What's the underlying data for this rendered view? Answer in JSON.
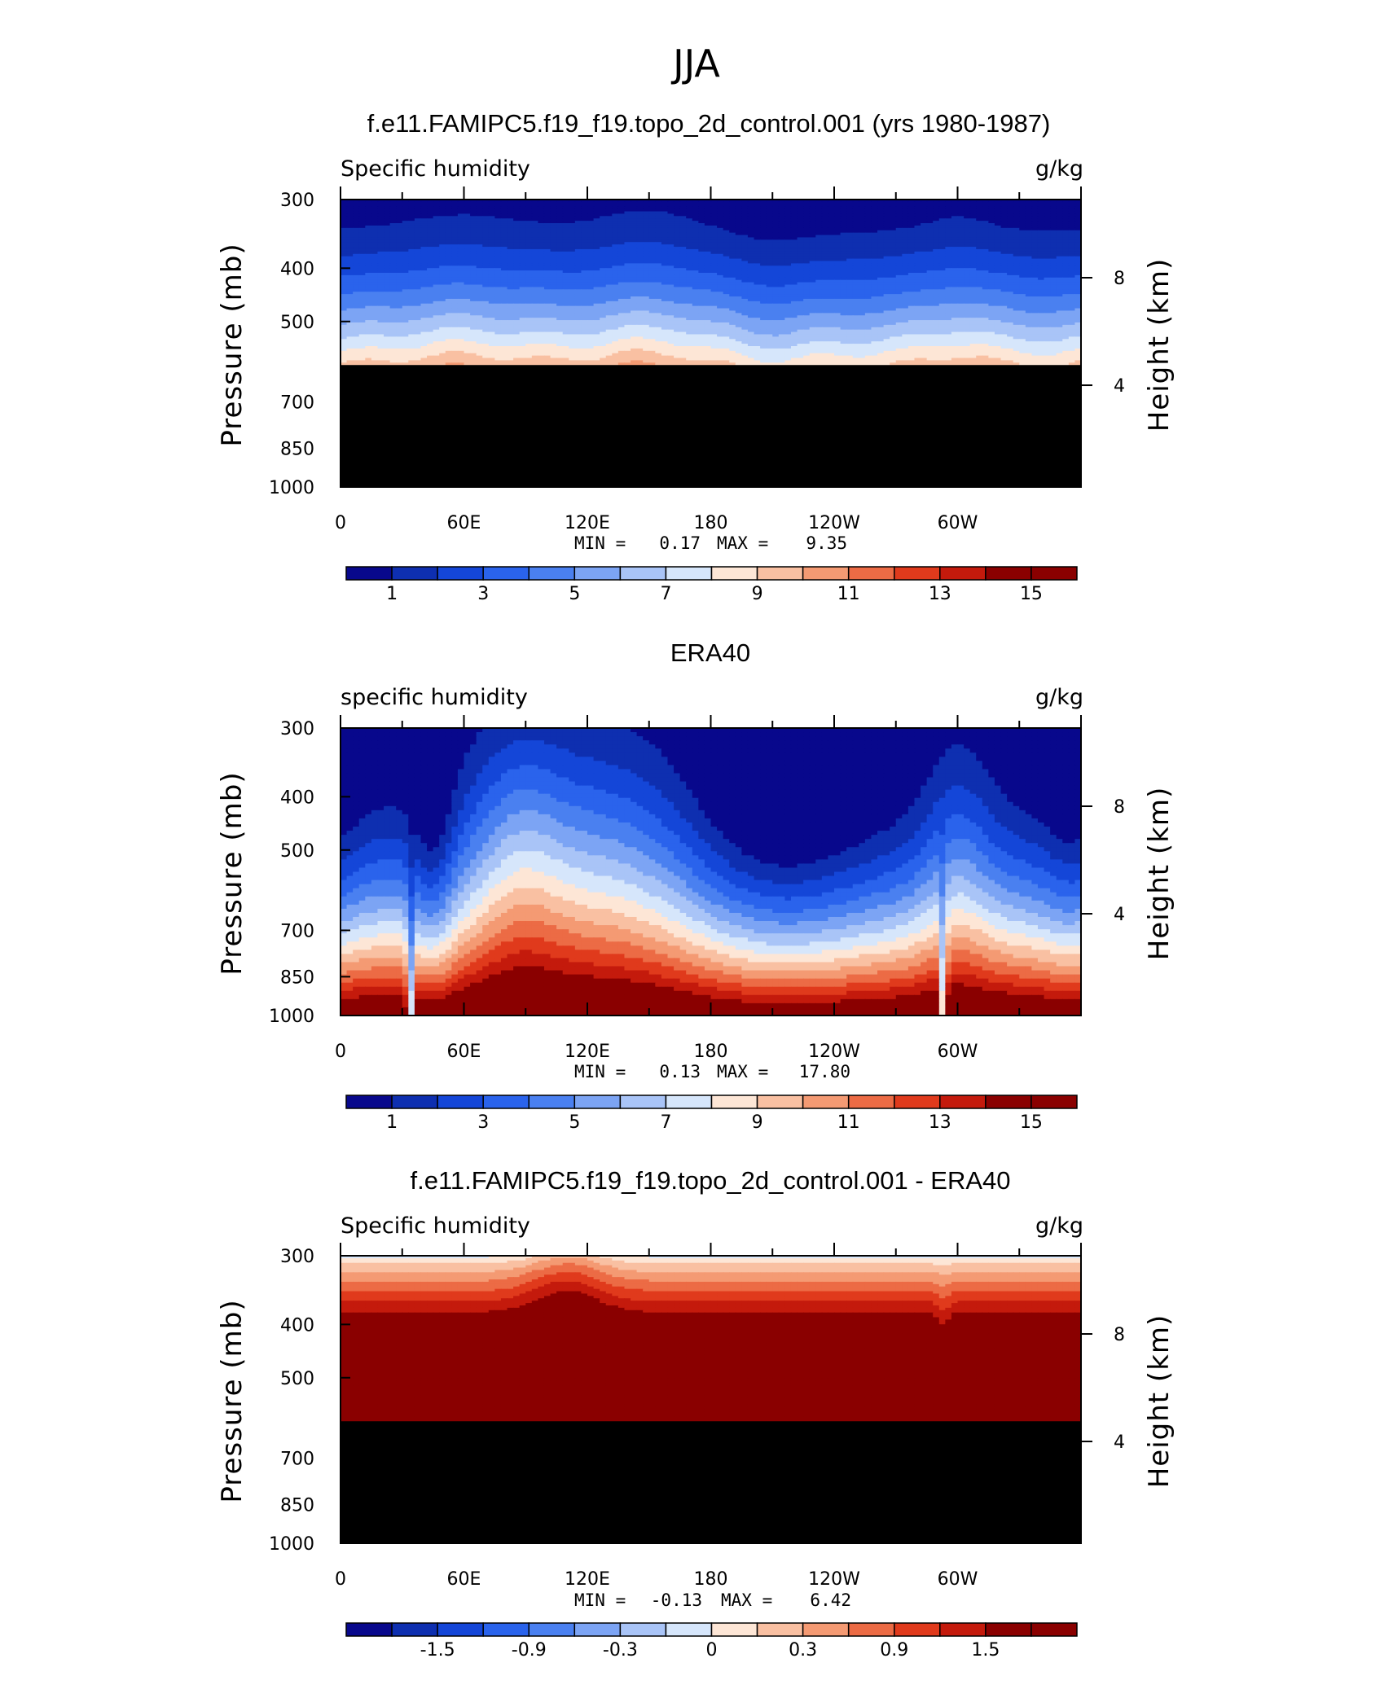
{
  "figure": {
    "title": "JJA",
    "palette": [
      "#08088c",
      "#0e2fb0",
      "#1446d8",
      "#2a63ec",
      "#4a80f0",
      "#7ca4f4",
      "#a9c4f7",
      "#d6e6fb",
      "#fde6d6",
      "#f9c0a2",
      "#f49a73",
      "#ec6b45",
      "#e03a1c",
      "#c41a0c",
      "#8a0000"
    ],
    "terrain_color": "#000000"
  },
  "chart_data": [
    {
      "type": "contour",
      "title": "f.e11.FAMIPC5.f19_f19.topo_2d_control.001 (yrs 1980-1987)",
      "left_label": "Specific humidity",
      "right_label": "g/kg",
      "ylabel": "Pressure (mb)",
      "y2label": "Height (km)",
      "y_ticks": [
        "300",
        "400",
        "500",
        "700",
        "850",
        "1000"
      ],
      "y2_ticks": [
        "8",
        "4"
      ],
      "x_ticks": [
        "0",
        "60E",
        "120E",
        "180",
        "120W",
        "60W"
      ],
      "min_label": "MIN =",
      "min_value": "0.17",
      "max_label": "MAX =",
      "max_value": "9.35",
      "colorbar_labels": [
        "1",
        "3",
        "5",
        "7",
        "9",
        "11",
        "13",
        "15"
      ],
      "terrain_below_pressure_mb": 600,
      "field": "model"
    },
    {
      "type": "contour",
      "title": "ERA40",
      "left_label": "specific humidity",
      "right_label": "g/kg",
      "ylabel": "Pressure (mb)",
      "y2label": "Height (km)",
      "y_ticks": [
        "300",
        "400",
        "500",
        "700",
        "850",
        "1000"
      ],
      "y2_ticks": [
        "8",
        "4"
      ],
      "x_ticks": [
        "0",
        "60E",
        "120E",
        "180",
        "120W",
        "60W"
      ],
      "min_label": "MIN =",
      "min_value": "0.13",
      "max_label": "MAX =",
      "max_value": "17.80",
      "colorbar_labels": [
        "1",
        "3",
        "5",
        "7",
        "9",
        "11",
        "13",
        "15"
      ],
      "terrain_below_pressure_mb": null,
      "field": "obs"
    },
    {
      "type": "contour",
      "title": "f.e11.FAMIPC5.f19_f19.topo_2d_control.001 - ERA40",
      "left_label": "Specific humidity",
      "right_label": "g/kg",
      "ylabel": "Pressure (mb)",
      "y2label": "Height (km)",
      "y_ticks": [
        "300",
        "400",
        "500",
        "700",
        "850",
        "1000"
      ],
      "y2_ticks": [
        "8",
        "4"
      ],
      "x_ticks": [
        "0",
        "60E",
        "120E",
        "180",
        "120W",
        "60W"
      ],
      "min_label": "MIN =",
      "min_value": "-0.13",
      "max_label": "MAX =",
      "max_value": "6.42",
      "colorbar_labels": [
        "-1.5",
        "-0.9",
        "-0.3",
        "0",
        "0.3",
        "0.9",
        "1.5"
      ],
      "terrain_below_pressure_mb": 600,
      "field": "diff"
    }
  ]
}
